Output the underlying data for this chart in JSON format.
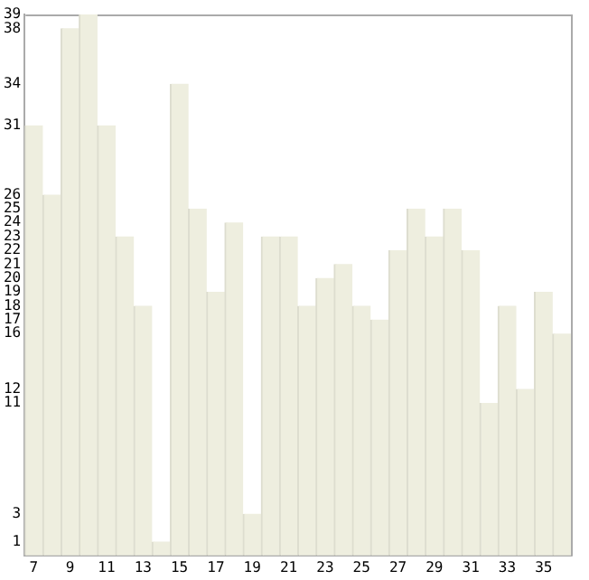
{
  "chart_data": {
    "type": "bar",
    "categories": [
      "7",
      null,
      "9",
      null,
      "11",
      null,
      "13",
      null,
      "15",
      null,
      "17",
      null,
      "19",
      null,
      "21",
      null,
      "23",
      null,
      "25",
      null,
      "27",
      null,
      "29",
      null,
      "31",
      null,
      "33",
      null,
      "35",
      null
    ],
    "values": [
      31,
      26,
      38,
      39,
      31,
      23,
      18,
      1,
      34,
      25,
      19,
      24,
      3,
      23,
      23,
      18,
      20,
      21,
      18,
      17,
      22,
      25,
      23,
      25,
      22,
      11,
      18,
      12,
      19,
      16
    ],
    "color": "#eeeedf",
    "ylim": [
      0,
      39
    ],
    "yticks": [
      1,
      3,
      11,
      12,
      16,
      17,
      18,
      19,
      20,
      21,
      22,
      23,
      24,
      25,
      26,
      31,
      34,
      38,
      39
    ],
    "grid": false,
    "legend": false
  }
}
